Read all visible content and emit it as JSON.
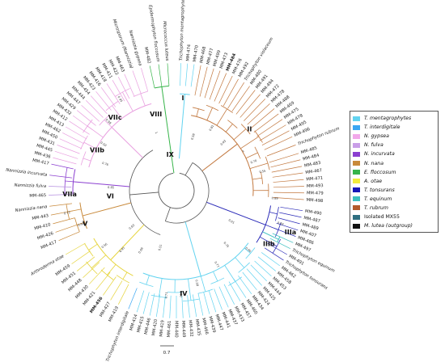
{
  "clade_labels": [
    "I",
    "II",
    "IIIa",
    "IIIb",
    "IV",
    "V",
    "VI",
    "VIIa",
    "VIIb",
    "VIIc",
    "VIII",
    "IX"
  ],
  "scale_label": "0.7",
  "legend": [
    {
      "label": "T. mentagrophytes",
      "color": "#62d3f0",
      "italic": true
    },
    {
      "label": "T. interdigitale",
      "color": "#3aa6f2",
      "italic": true
    },
    {
      "label": "N. gypsea",
      "color": "#f2a8ea",
      "italic": true
    },
    {
      "label": "N. fulva",
      "color": "#c99ee8",
      "italic": true
    },
    {
      "label": "N. incurvata",
      "color": "#8b3fd0",
      "italic": true
    },
    {
      "label": "N. nana",
      "color": "#c8893a",
      "italic": true
    },
    {
      "label": "E. floccosum",
      "color": "#36b449",
      "italic": true
    },
    {
      "label": "A. otae",
      "color": "#f2ec3c",
      "italic": true
    },
    {
      "label": "T. tonsurans",
      "color": "#1818b8",
      "italic": true
    },
    {
      "label": "T. equinum",
      "color": "#3ec0c0",
      "italic": true
    },
    {
      "label": "T. rubrum",
      "color": "#b35a2b",
      "italic": true
    },
    {
      "label": "Isolated MX55",
      "color": "#2f6f80",
      "italic": false
    },
    {
      "label": "M. lutea (outgroup)",
      "color": "#111111",
      "italic": true
    }
  ],
  "tips": [
    {
      "label": "Trichophyton mentagrophytes",
      "a": -88,
      "c": "cyan",
      "s": "i"
    },
    {
      "label": "MM-474",
      "a": -85,
      "c": "cyan"
    },
    {
      "label": "MM-470",
      "a": -82,
      "c": "cyan"
    },
    {
      "label": "MM-468",
      "a": -79,
      "c": "rubrum"
    },
    {
      "label": "MM-477",
      "a": -76,
      "c": "rubrum"
    },
    {
      "label": "MM-499",
      "a": -73,
      "c": "rubrum"
    },
    {
      "label": "MM-473",
      "a": -70,
      "c": "rubrum"
    },
    {
      "label": "MM-484",
      "a": -67,
      "c": "rubrum",
      "s": "b"
    },
    {
      "label": "MM-476",
      "a": -64,
      "c": "rubrum"
    },
    {
      "label": "MM-492",
      "a": -61,
      "c": "rubrum"
    },
    {
      "label": "Trichophyton violaceum",
      "a": -58,
      "c": "rubrum",
      "s": "i"
    },
    {
      "label": "MM-480",
      "a": -55,
      "c": "rubrum"
    },
    {
      "label": "MM-491",
      "a": -52,
      "c": "rubrum"
    },
    {
      "label": "MM-494",
      "a": -49,
      "c": "rubrum"
    },
    {
      "label": "MM-472",
      "a": -46,
      "c": "rubrum"
    },
    {
      "label": "MM-478",
      "a": -43,
      "c": "rubrum"
    },
    {
      "label": "MM-488",
      "a": -40,
      "c": "rubrum"
    },
    {
      "label": "MM-469",
      "a": -37,
      "c": "rubrum"
    },
    {
      "label": "MM-475",
      "a": -34,
      "c": "rubrum"
    },
    {
      "label": "MM-478",
      "a": -31,
      "c": "rubrum"
    },
    {
      "label": "MM-495",
      "a": -28,
      "c": "rubrum"
    },
    {
      "label": "MM-496",
      "a": -25,
      "c": "rubrum"
    },
    {
      "label": "Trichophyton rubrum",
      "a": -21,
      "c": "rubrum",
      "s": "i"
    },
    {
      "label": "MM-485",
      "a": -17,
      "c": "rubrum"
    },
    {
      "label": "MM-484",
      "a": -14,
      "c": "rubrum"
    },
    {
      "label": "MM-483",
      "a": -11,
      "c": "rubrum"
    },
    {
      "label": "MM-467",
      "a": -8,
      "c": "rubrum"
    },
    {
      "label": "MM-471",
      "a": -5,
      "c": "rubrum"
    },
    {
      "label": "MM-493",
      "a": -2,
      "c": "rubrum"
    },
    {
      "label": "MM-479",
      "a": 1,
      "c": "rubrum"
    },
    {
      "label": "MM-498",
      "a": 4,
      "c": "rubrum"
    },
    {
      "label": "MM-490",
      "a": 9,
      "c": "tons"
    },
    {
      "label": "MM-487",
      "a": 12,
      "c": "tons"
    },
    {
      "label": "MM-489",
      "a": 15,
      "c": "tons"
    },
    {
      "label": "MM-407",
      "a": 18,
      "c": "tons"
    },
    {
      "label": "MM-486",
      "a": 21,
      "c": "tons"
    },
    {
      "label": "MM-497",
      "a": 24,
      "c": "equi"
    },
    {
      "label": "Trichophyton equinum",
      "a": 27,
      "c": "equi",
      "s": "i"
    },
    {
      "label": "MM-491",
      "a": 30,
      "c": "tons"
    },
    {
      "label": "Trichophyton tonsurans",
      "a": 33,
      "c": "tons",
      "s": "i"
    },
    {
      "label": "MM-462",
      "a": 36,
      "c": "cyan"
    },
    {
      "label": "MM-458",
      "a": 39,
      "c": "cyan"
    },
    {
      "label": "MM-453",
      "a": 42,
      "c": "cyan"
    },
    {
      "label": "MM-444",
      "a": 45,
      "c": "cyan"
    },
    {
      "label": "MM-425",
      "a": 48,
      "c": "cyan"
    },
    {
      "label": "MM-424",
      "a": 51,
      "c": "cyan"
    },
    {
      "label": "MM-434",
      "a": 54,
      "c": "cyan"
    },
    {
      "label": "MM-460",
      "a": 57,
      "c": "cyan"
    },
    {
      "label": "MM-457",
      "a": 60,
      "c": "cyan"
    },
    {
      "label": "MM-433",
      "a": 63,
      "c": "cyan"
    },
    {
      "label": "MM-437",
      "a": 66,
      "c": "cyan"
    },
    {
      "label": "MM-441",
      "a": 69,
      "c": "cyan"
    },
    {
      "label": "MM-447",
      "a": 72,
      "c": "cyan"
    },
    {
      "label": "MM-439",
      "a": 75,
      "c": "cyan"
    },
    {
      "label": "MM-466",
      "a": 78,
      "c": "cyan"
    },
    {
      "label": "MM-435",
      "a": 81,
      "c": "cyan"
    },
    {
      "label": "MM-432",
      "a": 84,
      "c": "cyan"
    },
    {
      "label": "MM-449",
      "a": 87,
      "c": "cyan"
    },
    {
      "label": "MM-440",
      "a": 90,
      "c": "cyan"
    },
    {
      "label": "MM-461",
      "a": 93,
      "c": "cyan"
    },
    {
      "label": "MM-419",
      "a": 96,
      "c": "cyan"
    },
    {
      "label": "MM-420",
      "a": 99,
      "c": "cyan"
    },
    {
      "label": "MM-446",
      "a": 102,
      "c": "cyan"
    },
    {
      "label": "MM-415",
      "a": 105,
      "c": "cyan"
    },
    {
      "label": "MM-414",
      "a": 108,
      "c": "cyan"
    },
    {
      "label": "Trichophyton interdigitale",
      "a": 112,
      "c": "blue",
      "s": "i"
    },
    {
      "label": "MM-419",
      "a": 117,
      "c": "yellow"
    },
    {
      "label": "MM-427",
      "a": 121,
      "c": "yellow"
    },
    {
      "label": "MM-456",
      "a": 125,
      "c": "yellow",
      "s": "b"
    },
    {
      "label": "MM-421",
      "a": 129,
      "c": "yellow"
    },
    {
      "label": "MM-430",
      "a": 133,
      "c": "yellow"
    },
    {
      "label": "MM-448",
      "a": 137,
      "c": "yellow"
    },
    {
      "label": "MM-451",
      "a": 141,
      "c": "yellow"
    },
    {
      "label": "MM-459",
      "a": 145,
      "c": "yellow"
    },
    {
      "label": "Arthroderma otae",
      "a": 150,
      "c": "yellow",
      "s": "i"
    },
    {
      "label": "MM-417",
      "a": 157,
      "c": "nana"
    },
    {
      "label": "MM-426",
      "a": 161,
      "c": "nana"
    },
    {
      "label": "MM-410",
      "a": 165,
      "c": "nana"
    },
    {
      "label": "MM-443",
      "a": 169,
      "c": "nana"
    },
    {
      "label": "Nannizzia nana",
      "a": 173,
      "c": "nana",
      "s": "i"
    },
    {
      "label": "MM-465",
      "a": 178,
      "c": "fulva"
    },
    {
      "label": "Nannizzia fulva",
      "a": 182,
      "c": "fulva",
      "s": "i"
    },
    {
      "label": "Nannizzia incurvata",
      "a": 187,
      "c": "incurv",
      "s": "i"
    },
    {
      "label": "MM-417",
      "a": 192,
      "c": "incurv"
    },
    {
      "label": "MM-436",
      "a": 195,
      "c": "pink"
    },
    {
      "label": "MM-445",
      "a": 198,
      "c": "pink"
    },
    {
      "label": "MM-431",
      "a": 201,
      "c": "pink"
    },
    {
      "label": "MM-450",
      "a": 204,
      "c": "pink"
    },
    {
      "label": "MM-462",
      "a": 207,
      "c": "pink"
    },
    {
      "label": "MM-413",
      "a": 210,
      "c": "pink"
    },
    {
      "label": "MM-412",
      "a": 213,
      "c": "pink"
    },
    {
      "label": "MM-432",
      "a": 216,
      "c": "pink"
    },
    {
      "label": "MM-429",
      "a": 219,
      "c": "pink"
    },
    {
      "label": "MM-447",
      "a": 222,
      "c": "pink"
    },
    {
      "label": "MM-444",
      "a": 225,
      "c": "pink"
    },
    {
      "label": "MM-454",
      "a": 228,
      "c": "pink"
    },
    {
      "label": "MM-423",
      "a": 231,
      "c": "pink"
    },
    {
      "label": "MM-416",
      "a": 234,
      "c": "pink"
    },
    {
      "label": "MM-418",
      "a": 237,
      "c": "pink"
    },
    {
      "label": "MM-411",
      "a": 240,
      "c": "pink"
    },
    {
      "label": "MM-422",
      "a": 243,
      "c": "pink"
    },
    {
      "label": "MM-463",
      "a": 246,
      "c": "pink"
    },
    {
      "label": "Microsporum (Nannizzia)",
      "a": 250,
      "c": "pink",
      "s": "i"
    },
    {
      "label": "Nannizzia gypsea",
      "a": 254,
      "c": "pink",
      "s": "i"
    },
    {
      "label": "MM-482",
      "a": 258,
      "c": "green"
    },
    {
      "label": "Epidermophyton floccosum",
      "a": 262,
      "c": "green",
      "s": "i"
    },
    {
      "label": "Micrococcus luteus",
      "a": 266,
      "c": "green",
      "s": "i"
    }
  ],
  "support_values": [
    "0.58",
    "0.93",
    "1",
    "0.55",
    "0.89",
    "0.92",
    "0.61",
    "0.75",
    "0.77",
    "0.58",
    "0.71",
    "0.51",
    "0.66",
    "0.91",
    "0.56",
    "0.94",
    "0.73",
    "0.85",
    "0.76",
    "0.50",
    "0.98",
    "0.95",
    "1",
    "0.81",
    "0.70",
    "0.96",
    "0.60",
    "0.83"
  ]
}
